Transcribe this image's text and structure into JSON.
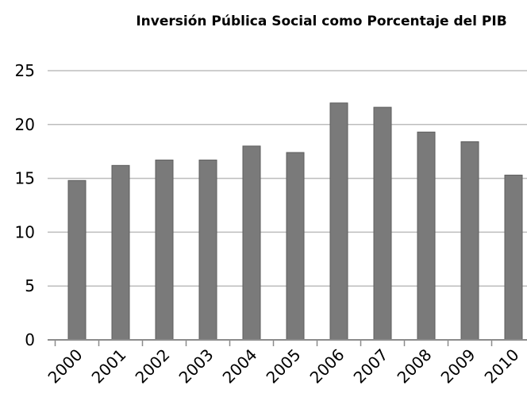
{
  "chart_data": {
    "type": "bar",
    "title": "Inversión Pública Social como Porcentaje del PIB",
    "categories": [
      "2000",
      "2001",
      "2002",
      "2003",
      "2004",
      "2005",
      "2006",
      "2007",
      "2008",
      "2009",
      "2010"
    ],
    "values": [
      14.8,
      16.2,
      16.7,
      16.7,
      18.0,
      17.4,
      22.0,
      21.6,
      19.3,
      18.4,
      15.3
    ],
    "ylim": [
      0,
      25
    ],
    "yticks": [
      "0",
      "5",
      "10",
      "15",
      "20",
      "25"
    ],
    "xlabel": "",
    "ylabel": "",
    "grid": true,
    "legend": "none",
    "colors": {
      "bar": "#7a7a7a",
      "bar_edge": "#5e5e5e",
      "grid": "#bdbdbd",
      "axis": "#8c8c8c"
    }
  }
}
